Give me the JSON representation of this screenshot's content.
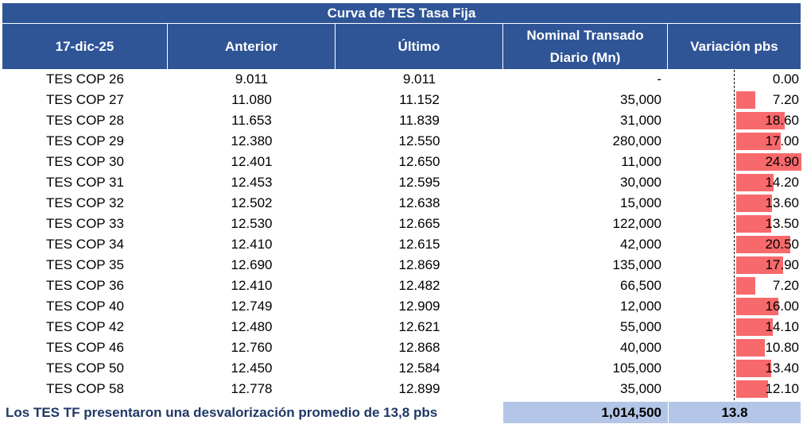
{
  "title": "Curva de TES Tasa Fija",
  "headers": {
    "date": "17-dic-25",
    "previous": "Anterior",
    "last": "Último",
    "nominal_line1": "Nominal Transado",
    "nominal_line2": "Diario (Mn)",
    "variation": "Variación pbs"
  },
  "rows": [
    {
      "name": "TES COP 26",
      "prev": "9.011",
      "last": "9.011",
      "nominal": "-",
      "variation": "0.00",
      "var_value": 0.0
    },
    {
      "name": "TES COP 27",
      "prev": "11.080",
      "last": "11.152",
      "nominal": "35,000",
      "variation": "7.20",
      "var_value": 7.2
    },
    {
      "name": "TES COP 28",
      "prev": "11.653",
      "last": "11.839",
      "nominal": "31,000",
      "variation": "18.60",
      "var_value": 18.6
    },
    {
      "name": "TES COP 29",
      "prev": "12.380",
      "last": "12.550",
      "nominal": "280,000",
      "variation": "17.00",
      "var_value": 17.0
    },
    {
      "name": "TES COP 30",
      "prev": "12.401",
      "last": "12.650",
      "nominal": "11,000",
      "variation": "24.90",
      "var_value": 24.9
    },
    {
      "name": "TES COP 31",
      "prev": "12.453",
      "last": "12.595",
      "nominal": "30,000",
      "variation": "14.20",
      "var_value": 14.2
    },
    {
      "name": "TES COP 32",
      "prev": "12.502",
      "last": "12.638",
      "nominal": "15,000",
      "variation": "13.60",
      "var_value": 13.6
    },
    {
      "name": "TES COP 33",
      "prev": "12.530",
      "last": "12.665",
      "nominal": "122,000",
      "variation": "13.50",
      "var_value": 13.5
    },
    {
      "name": "TES COP 34",
      "prev": "12.410",
      "last": "12.615",
      "nominal": "42,000",
      "variation": "20.50",
      "var_value": 20.5
    },
    {
      "name": "TES COP 35",
      "prev": "12.690",
      "last": "12.869",
      "nominal": "135,000",
      "variation": "17.90",
      "var_value": 17.9
    },
    {
      "name": "TES COP 36",
      "prev": "12.410",
      "last": "12.482",
      "nominal": "66,500",
      "variation": "7.20",
      "var_value": 7.2
    },
    {
      "name": "TES COP 40",
      "prev": "12.749",
      "last": "12.909",
      "nominal": "12,000",
      "variation": "16.00",
      "var_value": 16.0
    },
    {
      "name": "TES COP 42",
      "prev": "12.480",
      "last": "12.621",
      "nominal": "55,000",
      "variation": "14.10",
      "var_value": 14.1
    },
    {
      "name": "TES COP 46",
      "prev": "12.760",
      "last": "12.868",
      "nominal": "40,000",
      "variation": "10.80",
      "var_value": 10.8
    },
    {
      "name": "TES COP 50",
      "prev": "12.450",
      "last": "12.584",
      "nominal": "105,000",
      "variation": "13.40",
      "var_value": 13.4
    },
    {
      "name": "TES COP 58",
      "prev": "12.778",
      "last": "12.899",
      "nominal": "35,000",
      "variation": "12.10",
      "var_value": 12.1
    }
  ],
  "footer": {
    "text": "Los TES TF presentaron una desvalorización promedio de 13,8 pbs",
    "total_nominal": "1,014,500",
    "avg_variation": "13.8"
  },
  "colors": {
    "header_bg": "#2f5597",
    "bar": "#f8696b",
    "footer_bg": "#b4c6e7",
    "footer_text": "#1f3864"
  }
}
